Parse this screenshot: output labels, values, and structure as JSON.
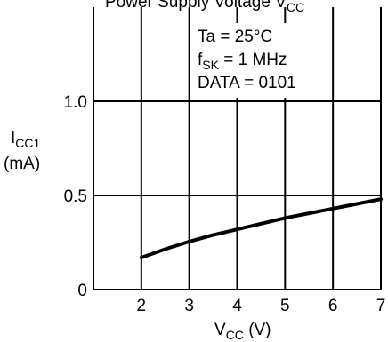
{
  "chart_data": {
    "type": "line",
    "title_fragment": "Power Supply Voltage V",
    "title_fragment_sub": "CC",
    "xlabel": "V",
    "xlabel_sub": "CC",
    "xlabel_unit": " (V)",
    "ylabel_line1": "I",
    "ylabel_line1_sub": "CC1",
    "ylabel_line2": "(mA)",
    "xlim": [
      1,
      7
    ],
    "ylim": [
      0,
      1.5
    ],
    "x_ticks": [
      "2",
      "3",
      "4",
      "5",
      "6",
      "7"
    ],
    "y_ticks": [
      "0",
      "0.5",
      "1.0"
    ],
    "grid": true,
    "annotations": {
      "line1": "Ta = 25°C",
      "line2_main": "f",
      "line2_sub": "SK",
      "line2_rest": " = 1 MHz",
      "line3": "DATA = 0101"
    },
    "series": [
      {
        "x": [
          2,
          2.5,
          3,
          3.5,
          4,
          4.5,
          5,
          5.5,
          6,
          6.5,
          7
        ],
        "y": [
          0.17,
          0.215,
          0.255,
          0.29,
          0.32,
          0.35,
          0.38,
          0.405,
          0.43,
          0.455,
          0.48
        ]
      }
    ]
  }
}
